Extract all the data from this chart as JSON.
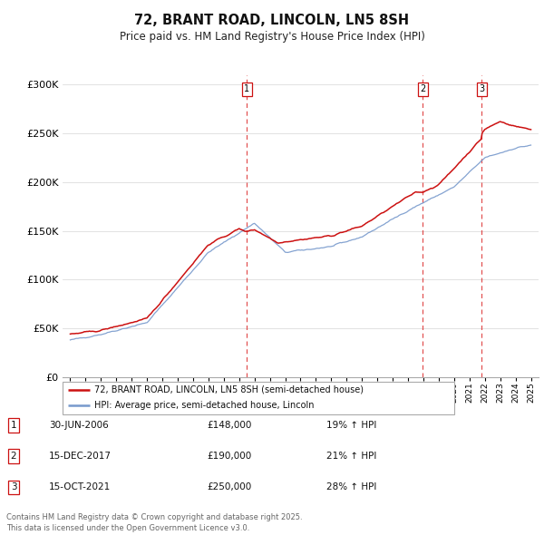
{
  "title": "72, BRANT ROAD, LINCOLN, LN5 8SH",
  "subtitle": "Price paid vs. HM Land Registry's House Price Index (HPI)",
  "red_label": "72, BRANT ROAD, LINCOLN, LN5 8SH (semi-detached house)",
  "blue_label": "HPI: Average price, semi-detached house, Lincoln",
  "transactions": [
    {
      "num": 1,
      "date": "30-JUN-2006",
      "price": "£148,000",
      "change": "19% ↑ HPI",
      "year": 2006.5
    },
    {
      "num": 2,
      "date": "15-DEC-2017",
      "price": "£190,000",
      "change": "21% ↑ HPI",
      "year": 2017.96
    },
    {
      "num": 3,
      "date": "15-OCT-2021",
      "price": "£250,000",
      "change": "28% ↑ HPI",
      "year": 2021.79
    }
  ],
  "footer": "Contains HM Land Registry data © Crown copyright and database right 2025.\nThis data is licensed under the Open Government Licence v3.0.",
  "ylim": [
    0,
    310000
  ],
  "xlim": [
    1994.5,
    2025.5
  ],
  "yticks": [
    0,
    50000,
    100000,
    150000,
    200000,
    250000,
    300000
  ],
  "ytick_labels": [
    "£0",
    "£50K",
    "£100K",
    "£150K",
    "£200K",
    "£250K",
    "£300K"
  ],
  "red_color": "#cc1111",
  "blue_color": "#7799cc",
  "vline_color": "#dd3333",
  "grid_color": "#dddddd",
  "legend_border_color": "#aaaaaa",
  "marker_border_color": "#cc1111",
  "footer_color": "#666666",
  "bg_color": "#ffffff"
}
